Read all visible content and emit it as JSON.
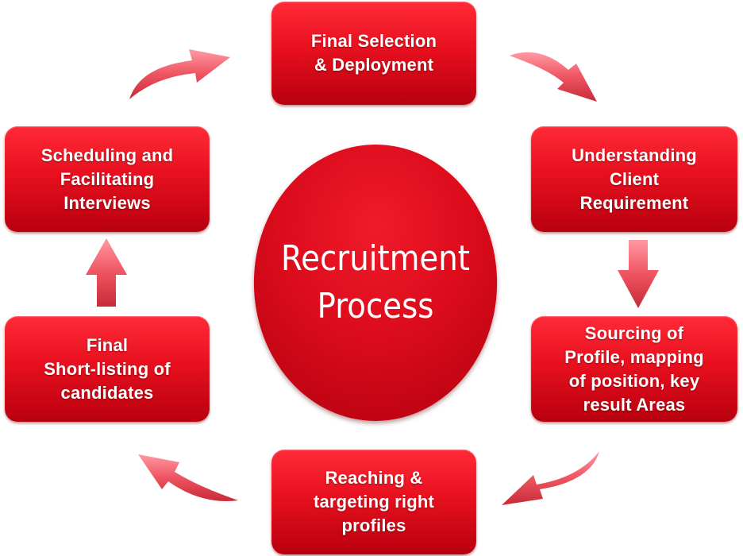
{
  "center": {
    "title": "Recruitment\nProcess"
  },
  "steps": [
    {
      "label": "Final Selection\n& Deployment"
    },
    {
      "label": "Understanding\nClient\nRequirement"
    },
    {
      "label": "Sourcing of\nProfile, mapping\nof position, key\nresult Areas"
    },
    {
      "label": "Reaching &\ntargeting right\nprofiles"
    },
    {
      "label": "Final\nShort-listing of\ncandidates"
    },
    {
      "label": "Scheduling and\nFacilitating\nInterviews"
    }
  ],
  "colors": {
    "box": "#e8101f",
    "arrow": "#e8505c"
  }
}
